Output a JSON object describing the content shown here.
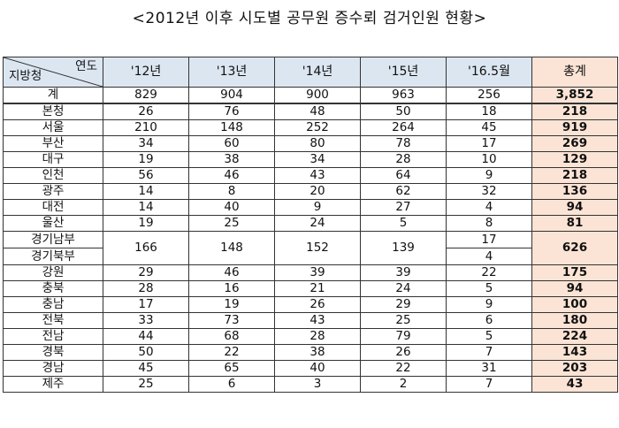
{
  "title": "<2012년 이후 시도별 공무원 증수뢰 검거인원 현황>",
  "header": {
    "corner_year": "연도",
    "corner_region": "지방청",
    "columns": [
      "'12년",
      "'13년",
      "'14년",
      "'15년",
      "'16.5월",
      "총계"
    ]
  },
  "rows": [
    {
      "region": "계",
      "values": [
        "829",
        "904",
        "900",
        "963",
        "256"
      ],
      "total": "3,852"
    },
    {
      "region": "본청",
      "values": [
        "26",
        "76",
        "48",
        "50",
        "18"
      ],
      "total": "218"
    },
    {
      "region": "서울",
      "values": [
        "210",
        "148",
        "252",
        "264",
        "45"
      ],
      "total": "919"
    },
    {
      "region": "부산",
      "values": [
        "34",
        "60",
        "80",
        "78",
        "17"
      ],
      "total": "269"
    },
    {
      "region": "대구",
      "values": [
        "19",
        "38",
        "34",
        "28",
        "10"
      ],
      "total": "129"
    },
    {
      "region": "인천",
      "values": [
        "56",
        "46",
        "43",
        "64",
        "9"
      ],
      "total": "218"
    },
    {
      "region": "광주",
      "values": [
        "14",
        "8",
        "20",
        "62",
        "32"
      ],
      "total": "136"
    },
    {
      "region": "대전",
      "values": [
        "14",
        "40",
        "9",
        "27",
        "4"
      ],
      "total": "94"
    },
    {
      "region": "울산",
      "values": [
        "19",
        "25",
        "24",
        "5",
        "8"
      ],
      "total": "81"
    }
  ],
  "gyeonggi": {
    "region_north_south": "경기남부",
    "region_north": "경기북부",
    "values": [
      "166",
      "148",
      "152",
      "139"
    ],
    "south_2016": "17",
    "north_2016": "4",
    "total": "626"
  },
  "rows_after": [
    {
      "region": "강원",
      "values": [
        "29",
        "46",
        "39",
        "39",
        "22"
      ],
      "total": "175"
    },
    {
      "region": "충북",
      "values": [
        "28",
        "16",
        "21",
        "24",
        "5"
      ],
      "total": "94"
    },
    {
      "region": "충남",
      "values": [
        "17",
        "19",
        "26",
        "29",
        "9"
      ],
      "total": "100"
    },
    {
      "region": "전북",
      "values": [
        "33",
        "73",
        "43",
        "25",
        "6"
      ],
      "total": "180"
    },
    {
      "region": "전남",
      "values": [
        "44",
        "68",
        "28",
        "79",
        "5"
      ],
      "total": "224"
    },
    {
      "region": "경북",
      "values": [
        "50",
        "22",
        "38",
        "26",
        "7"
      ],
      "total": "143"
    },
    {
      "region": "경남",
      "values": [
        "45",
        "65",
        "40",
        "22",
        "31"
      ],
      "total": "203"
    },
    {
      "region": "제주",
      "values": [
        "25",
        "6",
        "3",
        "2",
        "7"
      ],
      "total": "43"
    }
  ],
  "colors": {
    "header_bg": "#dce6f1",
    "total_bg": "#fbe4d5"
  }
}
